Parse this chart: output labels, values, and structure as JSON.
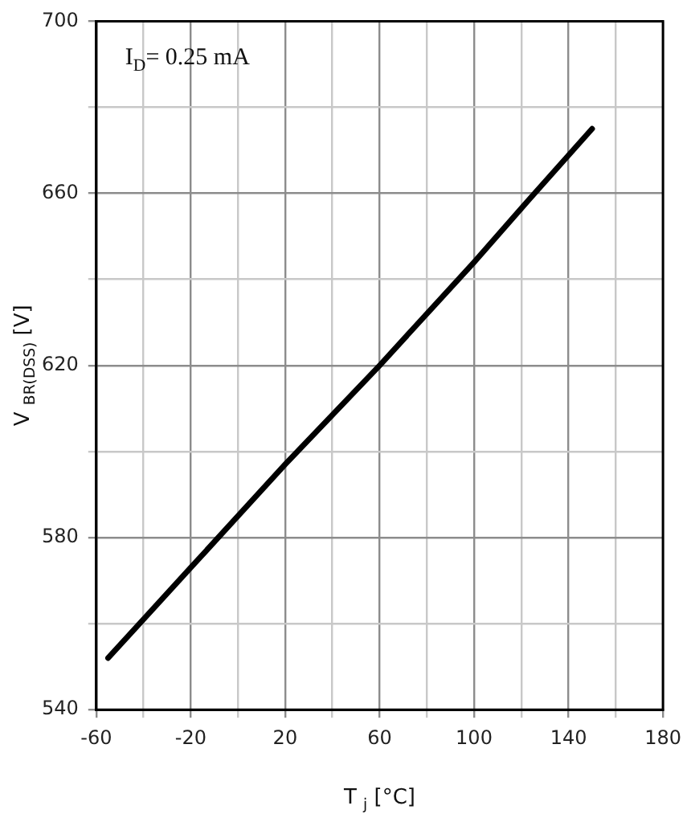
{
  "chart_data": {
    "type": "line",
    "xlabel": "T $_{j}$ [°C]",
    "ylabel": "V $_{BR(DSS)}$ [V]",
    "annotations": [
      "I$_{D}$= 0.25 mA"
    ],
    "x": [
      -55,
      -20,
      20,
      60,
      100,
      124,
      150
    ],
    "series": [
      {
        "color": "#000000",
        "values": [
          552,
          573,
          597,
          620,
          644,
          659,
          675
        ]
      }
    ],
    "xlim": [
      -60,
      180
    ],
    "xticks": [
      -60,
      {
        "value": -40,
        "label": null
      },
      -20,
      {
        "value": 0,
        "label": null
      },
      20,
      {
        "value": 40,
        "label": null
      },
      60,
      {
        "value": 80,
        "label": null
      },
      100,
      {
        "value": 120,
        "label": null
      },
      140,
      {
        "value": 160,
        "label": null
      },
      180
    ],
    "ylim": [
      540,
      700
    ],
    "yticks": [
      540,
      {
        "value": 560,
        "label": null
      },
      580,
      {
        "value": 600,
        "label": null
      },
      620,
      {
        "value": 640,
        "label": null
      },
      660,
      {
        "value": 680,
        "label": null
      },
      700
    ],
    "grid": true,
    "legend": false,
    "marker": "none",
    "line_style": "solid"
  }
}
